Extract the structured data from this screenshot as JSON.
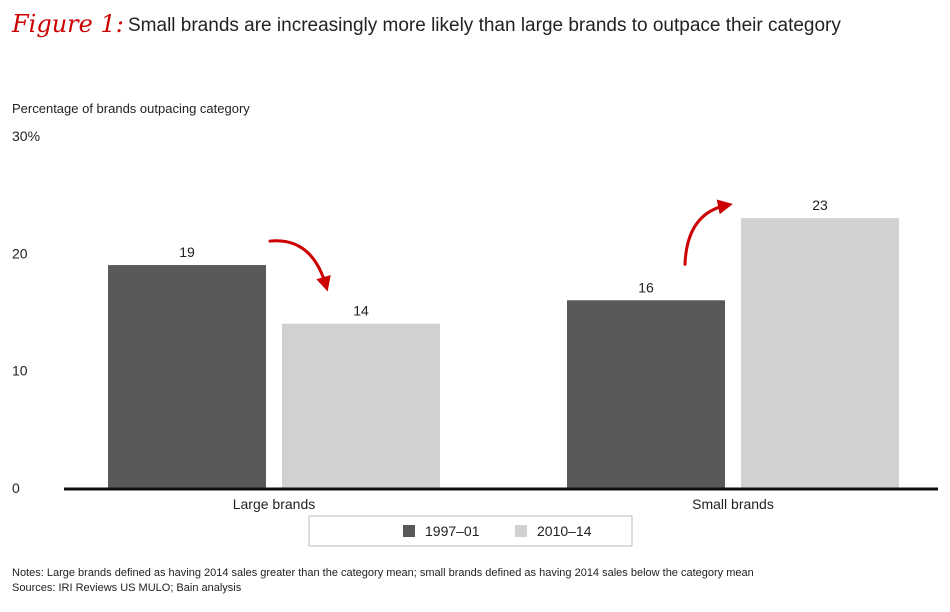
{
  "figure": {
    "label": "Figure 1:",
    "title": "Small brands are increasingly more likely than large brands to outpace their category"
  },
  "notes": {
    "note": "Notes: Large brands defined as having 2014 sales greater than the category mean; small brands defined as having 2014 sales below the category mean",
    "sources": "Sources: IRI Reviews US MULO; Bain analysis"
  },
  "colors": {
    "series_1": "#59595b",
    "series_2": "#d1d1d3",
    "arrow": "#cc0000",
    "axis": "#111111"
  },
  "chart_data": {
    "type": "bar",
    "ylabel": "Percentage of brands outpacing category",
    "ylim": [
      0,
      30
    ],
    "yticks": [
      {
        "value": 0,
        "label": "0"
      },
      {
        "value": 10,
        "label": "10"
      },
      {
        "value": 20,
        "label": "20"
      },
      {
        "value": 30,
        "label": "30%"
      }
    ],
    "categories": [
      "Large brands",
      "Small brands"
    ],
    "series": [
      {
        "name": "1997–01",
        "values": [
          19,
          16
        ]
      },
      {
        "name": "2010–14",
        "values": [
          14,
          23
        ]
      }
    ],
    "data_labels": [
      [
        "19",
        "16"
      ],
      [
        "14",
        "23"
      ]
    ],
    "legend_position": "bottom-center",
    "grid": false,
    "annotations": [
      {
        "type": "arrow",
        "category": "Large brands",
        "direction": "down"
      },
      {
        "type": "arrow",
        "category": "Small brands",
        "direction": "up"
      }
    ]
  }
}
